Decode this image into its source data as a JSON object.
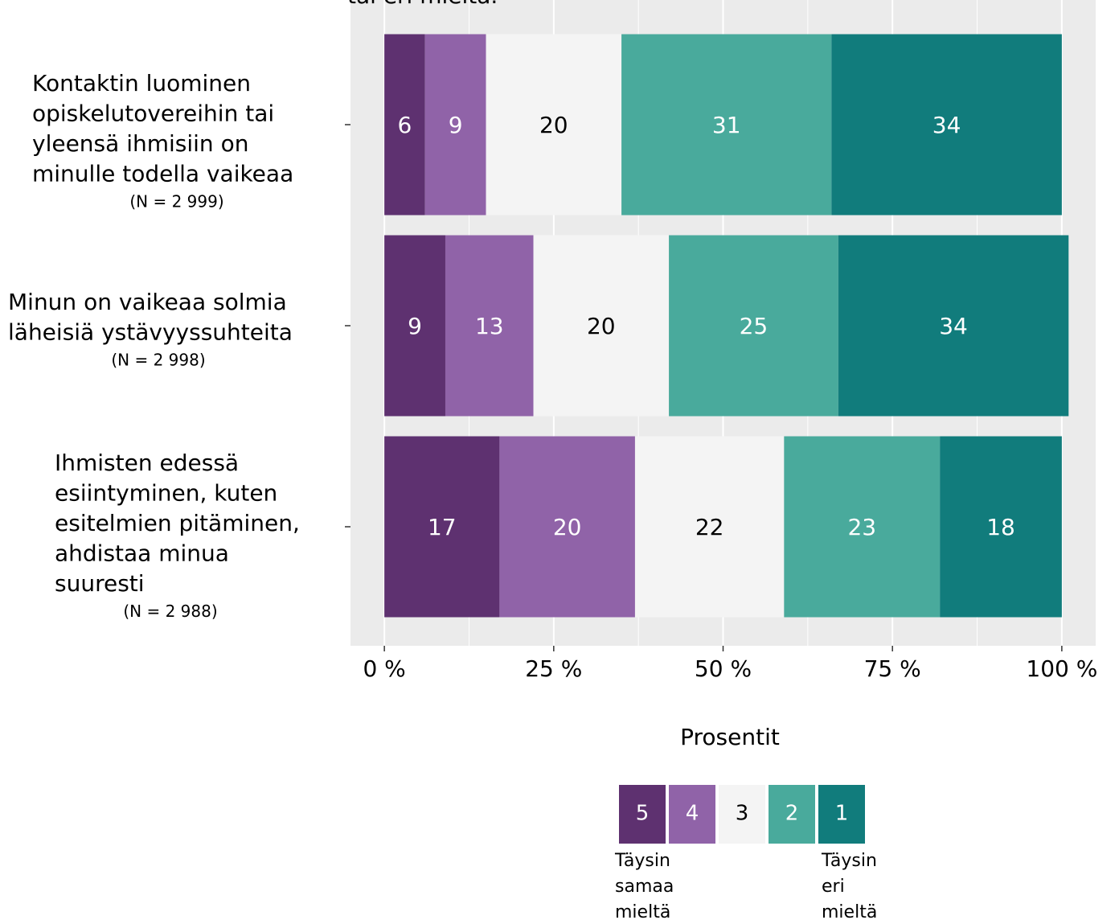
{
  "chart_data": {
    "type": "stacked-barh",
    "title": "tai eri mieltä.",
    "categories": [
      [
        "Kontaktin luominen",
        "opiskelutovereihin tai",
        "yleensä ihmisiin on",
        "minulle todella vaikeaa"
      ],
      [
        "Minun on vaikeaa solmia",
        "läheisiä ystävyyssuhteita"
      ],
      [
        "Ihmisten edessä",
        "esiintyminen, kuten",
        "esitelmien pitäminen,",
        "ahdistaa minua",
        "suuresti"
      ]
    ],
    "category_notes": [
      "(N = 2 999)",
      "(N = 2 998)",
      "(N = 2 988)"
    ],
    "series": [
      {
        "name": "5",
        "color": "#5e3170",
        "values": [
          6,
          9,
          17
        ]
      },
      {
        "name": "4",
        "color": "#9063a8",
        "values": [
          9,
          13,
          20
        ]
      },
      {
        "name": "3",
        "color": "#f4f4f4",
        "values": [
          20,
          20,
          22
        ]
      },
      {
        "name": "2",
        "color": "#49aa9c",
        "values": [
          31,
          25,
          23
        ]
      },
      {
        "name": "1",
        "color": "#117c7c",
        "values": [
          34,
          34,
          18
        ]
      }
    ],
    "xlim": [
      -5,
      105
    ],
    "xticks": [
      {
        "value": 0,
        "label": "0 %"
      },
      {
        "value": 25,
        "label": "25 %"
      },
      {
        "value": 50,
        "label": "50 %"
      },
      {
        "value": 75,
        "label": "75 %"
      },
      {
        "value": 100,
        "label": "100 %"
      }
    ],
    "xlabel": "Prosentit",
    "grid": true,
    "legend_notes": [
      [
        "Täysin",
        "samaa",
        "mieltä"
      ],
      [
        "Täysin",
        "eri",
        "mieltä"
      ]
    ]
  }
}
